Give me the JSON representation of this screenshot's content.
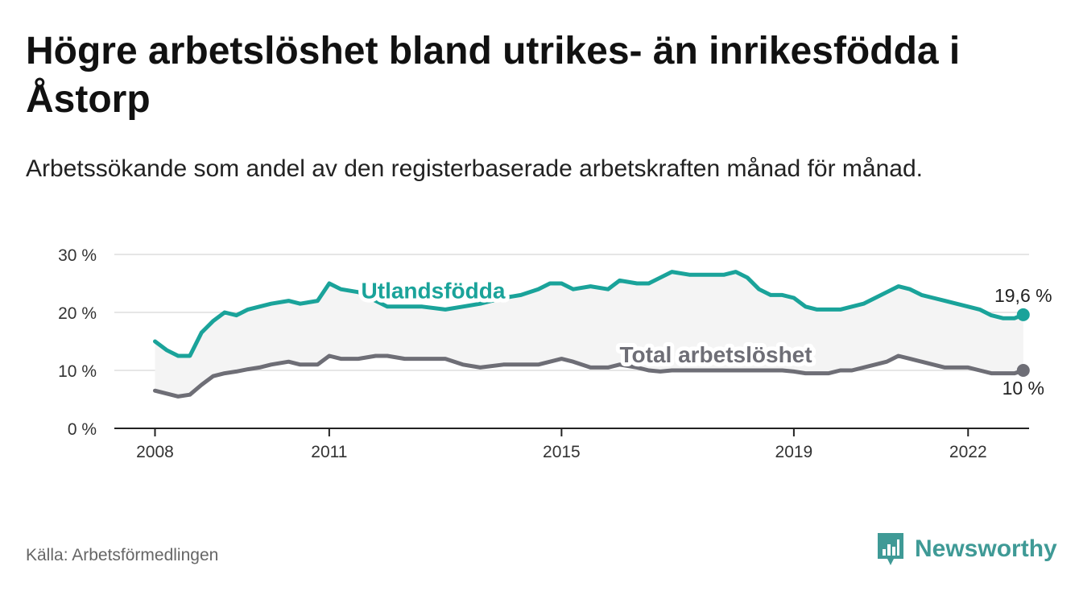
{
  "title": "Högre arbetslöshet bland utrikes- än inrikesfödda i Åstorp",
  "subtitle": "Arbetssökande som andel av den registerbaserade arbetskraften månad för månad.",
  "source": "Källa: Arbetsförmedlingen",
  "brand": {
    "name": "Newsworthy",
    "icon": "newsworthy-logo-icon",
    "color": "#3f9a96"
  },
  "colors": {
    "foreign": "#1aa39a",
    "total": "#6e6e76",
    "band": "#f4f4f4",
    "grid": "#dddddd",
    "axis": "#222222"
  },
  "chart_data": {
    "type": "line",
    "ylim": [
      0,
      30
    ],
    "y_ticks": [
      0,
      10,
      20,
      30
    ],
    "y_tick_labels": [
      "0 %",
      "10 %",
      "20 %",
      "30 %"
    ],
    "x_ticks": [
      2008,
      2011,
      2015,
      2019,
      2022
    ],
    "x_tick_labels": [
      "2008",
      "2011",
      "2015",
      "2019",
      "2022"
    ],
    "xlim": [
      2007.3,
      2023.05
    ],
    "fill_between_series": true,
    "series": [
      {
        "name": "Utlandsfödda",
        "label": "Utlandsfödda",
        "end_label": "19,6 %",
        "x": [
          2008.0,
          2008.2,
          2008.4,
          2008.6,
          2008.8,
          2009.0,
          2009.2,
          2009.4,
          2009.6,
          2009.8,
          2010.0,
          2010.3,
          2010.5,
          2010.8,
          2011.0,
          2011.2,
          2011.5,
          2011.8,
          2012.0,
          2012.3,
          2012.6,
          2013.0,
          2013.3,
          2013.6,
          2014.0,
          2014.3,
          2014.6,
          2014.8,
          2015.0,
          2015.2,
          2015.5,
          2015.8,
          2016.0,
          2016.3,
          2016.5,
          2016.7,
          2016.9,
          2017.2,
          2017.5,
          2017.8,
          2018.0,
          2018.2,
          2018.4,
          2018.6,
          2018.8,
          2019.0,
          2019.2,
          2019.4,
          2019.6,
          2019.8,
          2020.0,
          2020.2,
          2020.4,
          2020.6,
          2020.8,
          2021.0,
          2021.2,
          2021.4,
          2021.6,
          2021.8,
          2022.0,
          2022.2,
          2022.4,
          2022.6,
          2022.8,
          2022.95
        ],
        "values": [
          15.0,
          13.5,
          12.5,
          12.5,
          16.5,
          18.5,
          20.0,
          19.5,
          20.5,
          21.0,
          21.5,
          22.0,
          21.5,
          22.0,
          25.0,
          24.0,
          23.5,
          22.0,
          21.0,
          21.0,
          21.0,
          20.5,
          21.0,
          21.5,
          22.5,
          23.0,
          24.0,
          25.0,
          25.0,
          24.0,
          24.5,
          24.0,
          25.5,
          25.0,
          25.0,
          26.0,
          27.0,
          26.5,
          26.5,
          26.5,
          27.0,
          26.0,
          24.0,
          23.0,
          23.0,
          22.5,
          21.0,
          20.5,
          20.5,
          20.5,
          21.0,
          21.5,
          22.5,
          23.5,
          24.5,
          24.0,
          23.0,
          22.5,
          22.0,
          21.5,
          21.0,
          20.5,
          19.5,
          19.0,
          19.0,
          19.6
        ]
      },
      {
        "name": "Total arbetslöshet",
        "label": "Total arbetslöshet",
        "end_label": "10 %",
        "x": [
          2008.0,
          2008.2,
          2008.4,
          2008.6,
          2008.8,
          2009.0,
          2009.2,
          2009.4,
          2009.6,
          2009.8,
          2010.0,
          2010.3,
          2010.5,
          2010.8,
          2011.0,
          2011.2,
          2011.5,
          2011.8,
          2012.0,
          2012.3,
          2012.6,
          2013.0,
          2013.3,
          2013.6,
          2014.0,
          2014.3,
          2014.6,
          2014.8,
          2015.0,
          2015.2,
          2015.5,
          2015.8,
          2016.0,
          2016.3,
          2016.5,
          2016.7,
          2016.9,
          2017.2,
          2017.5,
          2017.8,
          2018.0,
          2018.2,
          2018.4,
          2018.6,
          2018.8,
          2019.0,
          2019.2,
          2019.4,
          2019.6,
          2019.8,
          2020.0,
          2020.2,
          2020.4,
          2020.6,
          2020.8,
          2021.0,
          2021.2,
          2021.4,
          2021.6,
          2021.8,
          2022.0,
          2022.2,
          2022.4,
          2022.6,
          2022.8,
          2022.95
        ],
        "values": [
          6.5,
          6.0,
          5.5,
          5.8,
          7.5,
          9.0,
          9.5,
          9.8,
          10.2,
          10.5,
          11.0,
          11.5,
          11.0,
          11.0,
          12.5,
          12.0,
          12.0,
          12.5,
          12.5,
          12.0,
          12.0,
          12.0,
          11.0,
          10.5,
          11.0,
          11.0,
          11.0,
          11.5,
          12.0,
          11.5,
          10.5,
          10.5,
          11.0,
          10.5,
          10.0,
          9.8,
          10.0,
          10.0,
          10.0,
          10.0,
          10.0,
          10.0,
          10.0,
          10.0,
          10.0,
          9.8,
          9.5,
          9.5,
          9.5,
          10.0,
          10.0,
          10.5,
          11.0,
          11.5,
          12.5,
          12.0,
          11.5,
          11.0,
          10.5,
          10.5,
          10.5,
          10.0,
          9.5,
          9.5,
          9.5,
          10.0
        ]
      }
    ]
  }
}
